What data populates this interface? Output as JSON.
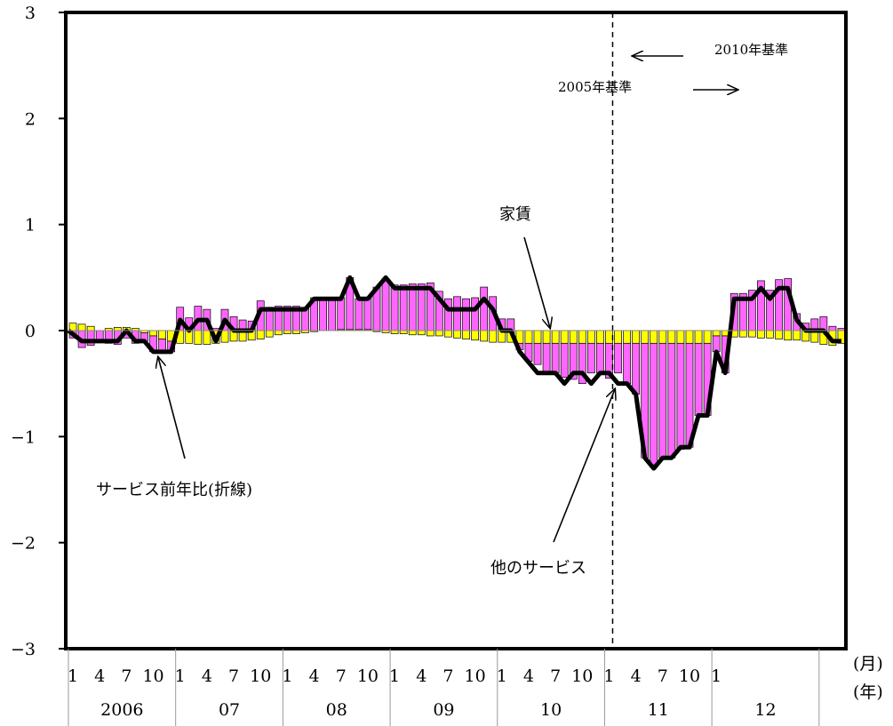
{
  "chart_data": {
    "type": "bar",
    "ylim": [
      -3,
      3
    ],
    "y_ticks": [
      "3",
      "2",
      "1",
      "0",
      "-1",
      "-2",
      "-3"
    ],
    "month_ticks": [
      "1",
      "4",
      "7",
      "10"
    ],
    "final_month_ticks": [
      "1"
    ],
    "years": [
      "2006",
      "07",
      "08",
      "09",
      "10",
      "11",
      "12"
    ],
    "x_unit_month": "(月)",
    "x_unit_year": "(年)",
    "annotations": {
      "rent": "家賃",
      "line": "サービス前年比(折線)",
      "other": "他のサービス",
      "base_old": "2005年基準",
      "base_new": "2010年基準"
    },
    "colors": {
      "rent": "#ffff00",
      "other": "#ff66ff",
      "line": "#000000"
    },
    "series": [
      {
        "key": "rent",
        "values": [
          0.07,
          0.06,
          0.04,
          0.0,
          0.02,
          0.03,
          0.03,
          0.02,
          -0.02,
          -0.05,
          -0.08,
          -0.1,
          -0.12,
          -0.12,
          -0.13,
          -0.13,
          -0.12,
          -0.11,
          -0.1,
          -0.1,
          -0.09,
          -0.08,
          -0.06,
          -0.04,
          -0.03,
          -0.03,
          -0.02,
          -0.01,
          0.0,
          0.0,
          0.01,
          0.01,
          0.01,
          0.01,
          -0.01,
          -0.02,
          -0.03,
          -0.03,
          -0.04,
          -0.04,
          -0.05,
          -0.05,
          -0.06,
          -0.07,
          -0.08,
          -0.09,
          -0.1,
          -0.11,
          -0.11,
          -0.11,
          -0.12,
          -0.12,
          -0.12,
          -0.12,
          -0.12,
          -0.12,
          -0.12,
          -0.12,
          -0.12,
          -0.12,
          -0.12,
          -0.12,
          -0.12,
          -0.12,
          -0.12,
          -0.12,
          -0.12,
          -0.12,
          -0.12,
          -0.12,
          -0.12,
          -0.12,
          -0.05,
          -0.05,
          -0.06,
          -0.06,
          -0.06,
          -0.07,
          -0.07,
          -0.08,
          -0.09,
          -0.09,
          -0.1,
          -0.11,
          -0.13,
          -0.14,
          -0.12
        ]
      },
      {
        "key": "other",
        "values": [
          -0.07,
          -0.16,
          -0.14,
          -0.1,
          -0.12,
          -0.13,
          -0.07,
          -0.12,
          -0.08,
          -0.15,
          -0.12,
          -0.1,
          0.22,
          0.12,
          0.23,
          0.2,
          0.02,
          0.2,
          0.13,
          0.1,
          0.09,
          0.28,
          0.22,
          0.23,
          0.23,
          0.23,
          0.22,
          0.31,
          0.3,
          0.3,
          0.3,
          0.49,
          0.29,
          0.3,
          0.41,
          0.49,
          0.43,
          0.43,
          0.44,
          0.44,
          0.45,
          0.37,
          0.3,
          0.32,
          0.3,
          0.31,
          0.41,
          0.32,
          0.11,
          0.11,
          -0.06,
          -0.17,
          -0.2,
          -0.28,
          -0.28,
          -0.32,
          -0.34,
          -0.38,
          -0.28,
          -0.28,
          -0.33,
          -0.28,
          -0.38,
          -0.48,
          -1.08,
          -1.17,
          -1.08,
          -1.08,
          -1.0,
          -0.98,
          -0.68,
          -0.68,
          -0.15,
          -0.35,
          0.35,
          0.35,
          0.38,
          0.47,
          0.38,
          0.48,
          0.49,
          0.16,
          0.07,
          0.11,
          0.13,
          0.04,
          0.02
        ]
      },
      {
        "key": "line",
        "values": [
          0.0,
          -0.1,
          -0.1,
          -0.1,
          -0.1,
          -0.1,
          0.0,
          -0.1,
          -0.1,
          -0.2,
          -0.2,
          -0.2,
          0.1,
          0.0,
          0.1,
          0.1,
          -0.1,
          0.1,
          0.0,
          0.0,
          0.0,
          0.2,
          0.2,
          0.2,
          0.2,
          0.2,
          0.2,
          0.3,
          0.3,
          0.3,
          0.3,
          0.5,
          0.3,
          0.3,
          0.4,
          0.5,
          0.4,
          0.4,
          0.4,
          0.4,
          0.4,
          0.3,
          0.2,
          0.2,
          0.2,
          0.2,
          0.3,
          0.2,
          0.0,
          0.0,
          -0.2,
          -0.3,
          -0.4,
          -0.4,
          -0.4,
          -0.5,
          -0.4,
          -0.4,
          -0.5,
          -0.4,
          -0.4,
          -0.5,
          -0.5,
          -0.6,
          -1.2,
          -1.3,
          -1.2,
          -1.2,
          -1.1,
          -1.1,
          -0.8,
          -0.8,
          -0.2,
          -0.4,
          0.3,
          0.3,
          0.3,
          0.4,
          0.3,
          0.4,
          0.4,
          0.1,
          0.0,
          0.0,
          0.0,
          -0.1,
          -0.1
        ]
      }
    ]
  }
}
